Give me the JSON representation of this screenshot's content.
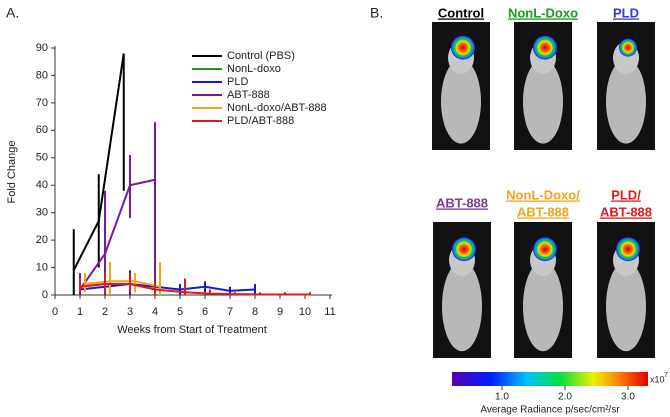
{
  "panel_a_label": "A.",
  "chart_data": {
    "type": "line",
    "xlabel": "Weeks from Start of Treatment",
    "ylabel": "Fold Change",
    "xlim": [
      0,
      11
    ],
    "xticks": [
      0,
      1,
      2,
      3,
      4,
      5,
      6,
      7,
      8,
      9,
      10,
      11
    ],
    "ylim": [
      0,
      90
    ],
    "yticks": [
      0,
      10,
      20,
      30,
      40,
      50,
      60,
      70,
      80,
      90
    ],
    "series": [
      {
        "name": "Control (PBS)",
        "color": "#000000",
        "x": [
          0.75,
          1.75,
          2.75
        ],
        "values": [
          9,
          27,
          88
        ],
        "error_bars": [
          [
            0,
            24
          ],
          [
            10,
            44
          ],
          [
            38,
            88
          ]
        ]
      },
      {
        "name": "NonL-doxo",
        "color": "#1a9a1a",
        "x": [
          1,
          2,
          3
        ],
        "values": [
          3,
          4,
          4
        ],
        "error_bars": [
          [
            1,
            5
          ],
          [
            2,
            6
          ],
          [
            2,
            6
          ]
        ]
      },
      {
        "name": "PLD",
        "color": "#1a1acc",
        "x": [
          1,
          2,
          3,
          4,
          5,
          6,
          7,
          8
        ],
        "values": [
          2,
          3,
          4,
          3,
          2,
          3,
          1.5,
          2
        ],
        "error_bars": [
          [
            1,
            4
          ],
          [
            0,
            7
          ],
          [
            0,
            9
          ],
          [
            1,
            5
          ],
          [
            0,
            4
          ],
          [
            1,
            5
          ],
          [
            0,
            3
          ],
          [
            0,
            4
          ]
        ]
      },
      {
        "name": "ABT-888",
        "color": "#7a1a9a",
        "x": [
          1,
          2,
          3,
          4
        ],
        "values": [
          2,
          15,
          40,
          42
        ],
        "error_bars": [
          [
            0,
            8
          ],
          [
            0,
            38
          ],
          [
            28,
            51
          ],
          [
            0,
            63
          ]
        ]
      },
      {
        "name": "NonL-doxo/ABT-888",
        "color": "#f5a31a",
        "x": [
          1.2,
          2.2,
          3.2,
          4.2
        ],
        "values": [
          4,
          5,
          5,
          3
        ],
        "error_bars": [
          [
            1,
            8
          ],
          [
            0,
            12
          ],
          [
            1,
            8
          ],
          [
            0,
            12
          ]
        ]
      },
      {
        "name": "PLD/ABT-888",
        "color": "#e01a1a",
        "x": [
          1,
          2,
          3,
          4,
          5.2,
          6.2,
          7.2,
          8.2,
          9.2,
          10.2
        ],
        "values": [
          3,
          4,
          4,
          2,
          1,
          0.5,
          0.3,
          0.2,
          0.2,
          0.2
        ],
        "error_bars": [
          [
            1,
            6
          ],
          [
            1,
            8
          ],
          [
            1,
            8
          ],
          [
            0,
            5
          ],
          [
            0,
            6
          ],
          [
            0,
            2
          ],
          [
            0,
            1
          ],
          [
            0,
            1
          ],
          [
            0,
            1
          ],
          [
            0,
            1
          ]
        ]
      }
    ]
  },
  "panel_b": {
    "label": "B.",
    "groups": [
      {
        "lines": [
          "Control"
        ],
        "color": "#000000"
      },
      {
        "lines": [
          "NonL-Doxo"
        ],
        "color": "#1a9a1a"
      },
      {
        "lines": [
          "PLD"
        ],
        "color": "#3a3acc"
      },
      {
        "lines": [
          "ABT-888"
        ],
        "color": "#7a3a9a"
      },
      {
        "lines": [
          "NonL-Doxo/",
          "ABT-888"
        ],
        "color": "#f5a31a"
      },
      {
        "lines": [
          "PLD/",
          "ABT-888"
        ],
        "color": "#e01a1a"
      }
    ],
    "colorbar": {
      "ticks": [
        "1.0",
        "2.0",
        "3.0"
      ],
      "multiplier": "x10",
      "exponent": "7",
      "title": "Average Radiance p/sec/cm²/sr"
    }
  }
}
